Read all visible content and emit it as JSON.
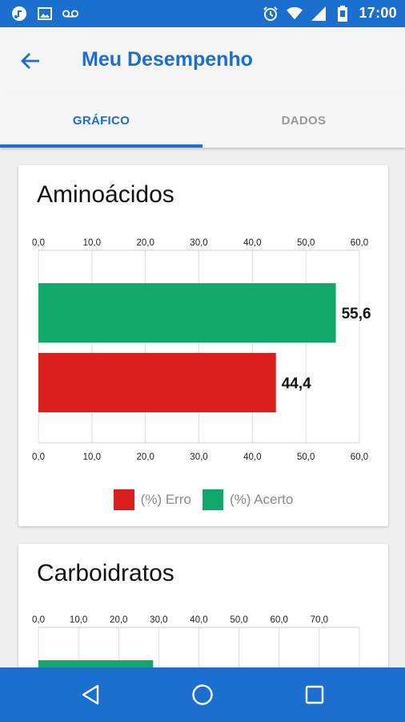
{
  "status_bar": {
    "time": "17:00",
    "left_icons": [
      "music-icon",
      "image-icon",
      "voicemail-icon"
    ],
    "right_icons": [
      "alarm-icon",
      "wifi-icon",
      "signal-icon",
      "battery-icon"
    ]
  },
  "app_bar": {
    "title": "Meu Desempenho",
    "back_icon": "arrow-left-icon"
  },
  "tabs": [
    {
      "label": "GRÁFICO",
      "active": true
    },
    {
      "label": "DADOS",
      "active": false
    }
  ],
  "colors": {
    "primary": "#1a6fcf",
    "erro": "#d91e1e",
    "acerto": "#13a86b"
  },
  "chart_data": [
    {
      "type": "bar",
      "orientation": "horizontal",
      "title": "Aminoácidos",
      "xlim": [
        0,
        60
      ],
      "ticks": [
        "0,0",
        "10,0",
        "20,0",
        "30,0",
        "40,0",
        "50,0",
        "60,0"
      ],
      "grid": true,
      "legend_placement": "bottom",
      "series": [
        {
          "name": "(%) Acerto",
          "value": 55.6,
          "label": "55,6",
          "color": "#13a86b"
        },
        {
          "name": "(%) Erro",
          "value": 44.4,
          "label": "44,4",
          "color": "#d91e1e"
        }
      ],
      "legend": [
        "(%) Erro",
        "(%) Acerto"
      ]
    },
    {
      "type": "bar",
      "orientation": "horizontal",
      "title": "Carboidratos",
      "xlim": [
        0,
        80
      ],
      "ticks": [
        "0,0",
        "10,0",
        "20,0",
        "30,0",
        "40,0",
        "50,0",
        "60,0",
        "70,0"
      ],
      "grid": true,
      "series": [
        {
          "value": 28.6,
          "color": "#13a86b"
        }
      ]
    }
  ],
  "nav_bar": {
    "buttons": [
      "back-triangle-icon",
      "home-circle-icon",
      "recents-square-icon"
    ]
  }
}
